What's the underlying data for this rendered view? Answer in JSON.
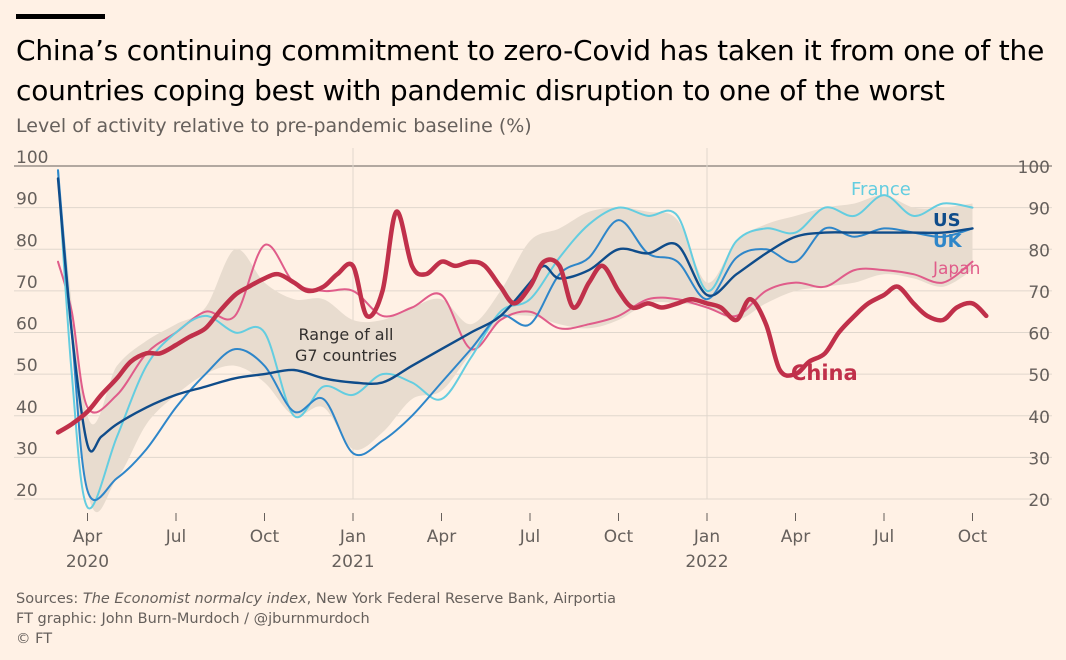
{
  "header": {
    "title": "China’s continuing commitment to zero-Covid has taken it from one of the countries coping best with pandemic disruption to one of the worst",
    "subtitle": "Level of activity relative to pre-pandemic baseline (%)"
  },
  "footer": {
    "sources_prefix": "Sources: ",
    "sources_italic": "The Economist normalcy index",
    "sources_rest": ", New York Federal Reserve Bank, Airportia",
    "credit": "FT graphic: John Burn-Murdoch / @jburnmurdoch",
    "copyright": "© FT"
  },
  "colors": {
    "background": "#fff1e5",
    "grid": "#e0d7cd",
    "range_band": "#e8dccf",
    "china": "#c0304a",
    "us": "#0f4c8a",
    "uk": "#2e86c9",
    "france": "#64cde0",
    "japan": "#e05c8a"
  },
  "chart_data": {
    "type": "line",
    "title": "China’s continuing commitment to zero-Covid has taken it from one of the countries coping best with pandemic disruption to one of the worst",
    "ylabel": "Level of activity relative to pre-pandemic baseline (%)",
    "ylim": [
      20,
      100
    ],
    "xlim": [
      "2020-03",
      "2022-11"
    ],
    "yticks": [
      100,
      90,
      80,
      70,
      60,
      50,
      40,
      30,
      20
    ],
    "xticks": [
      {
        "x": "2020-04",
        "label": "Apr",
        "year": "2020"
      },
      {
        "x": "2020-07",
        "label": "Jul",
        "year": ""
      },
      {
        "x": "2020-10",
        "label": "Oct",
        "year": ""
      },
      {
        "x": "2021-01",
        "label": "Jan",
        "year": "2021"
      },
      {
        "x": "2021-04",
        "label": "Apr",
        "year": ""
      },
      {
        "x": "2021-07",
        "label": "Jul",
        "year": ""
      },
      {
        "x": "2021-10",
        "label": "Oct",
        "year": ""
      },
      {
        "x": "2022-01",
        "label": "Jan",
        "year": "2022"
      },
      {
        "x": "2022-04",
        "label": "Apr",
        "year": ""
      },
      {
        "x": "2022-07",
        "label": "Jul",
        "year": ""
      },
      {
        "x": "2022-10",
        "label": "Oct",
        "year": ""
      }
    ],
    "range_label": "Range of all G7 countries",
    "range_band": {
      "x": [
        "2020-03-01",
        "2020-04-01",
        "2020-05-01",
        "2020-06-01",
        "2020-07-01",
        "2020-08-01",
        "2020-09-01",
        "2020-10-01",
        "2020-11-01",
        "2020-12-01",
        "2021-01-01",
        "2021-02-01",
        "2021-03-01",
        "2021-04-01",
        "2021-05-01",
        "2021-06-01",
        "2021-07-01",
        "2021-08-01",
        "2021-09-01",
        "2021-10-01",
        "2021-11-01",
        "2021-12-01",
        "2022-01-01",
        "2022-02-01",
        "2022-03-01",
        "2022-04-01",
        "2022-05-01",
        "2022-06-01",
        "2022-07-01",
        "2022-08-01",
        "2022-09-01",
        "2022-10-01"
      ],
      "low": [
        97,
        22,
        25,
        38,
        45,
        50,
        52,
        48,
        40,
        42,
        32,
        36,
        44,
        46,
        55,
        63,
        64,
        62,
        61,
        63,
        67,
        67,
        66,
        63,
        67,
        70,
        71,
        72,
        74,
        73,
        71,
        75
      ],
      "high": [
        99,
        40,
        52,
        58,
        62,
        66,
        80,
        72,
        68,
        68,
        63,
        63,
        66,
        68,
        62,
        70,
        82,
        85,
        89,
        90,
        89,
        87,
        72,
        82,
        86,
        88,
        90,
        91,
        93,
        90,
        90,
        91
      ]
    },
    "series": [
      {
        "name": "China",
        "color": "#c0304a",
        "x": [
          "2020-03-01",
          "2020-03-15",
          "2020-04-01",
          "2020-04-15",
          "2020-05-01",
          "2020-05-15",
          "2020-06-01",
          "2020-06-15",
          "2020-07-01",
          "2020-07-15",
          "2020-08-01",
          "2020-08-15",
          "2020-09-01",
          "2020-09-15",
          "2020-10-01",
          "2020-10-15",
          "2020-11-01",
          "2020-11-15",
          "2020-12-01",
          "2020-12-15",
          "2021-01-01",
          "2021-01-15",
          "2021-02-01",
          "2021-02-15",
          "2021-03-01",
          "2021-03-15",
          "2021-04-01",
          "2021-04-15",
          "2021-05-01",
          "2021-05-15",
          "2021-06-01",
          "2021-06-15",
          "2021-07-01",
          "2021-07-15",
          "2021-08-01",
          "2021-08-15",
          "2021-09-01",
          "2021-09-15",
          "2021-10-01",
          "2021-10-15",
          "2021-11-01",
          "2021-11-15",
          "2021-12-01",
          "2021-12-15",
          "2022-01-01",
          "2022-01-15",
          "2022-02-01",
          "2022-02-15",
          "2022-03-01",
          "2022-03-15",
          "2022-04-01",
          "2022-04-15",
          "2022-05-01",
          "2022-05-15",
          "2022-06-01",
          "2022-06-15",
          "2022-07-01",
          "2022-07-15",
          "2022-08-01",
          "2022-08-15",
          "2022-09-01",
          "2022-09-15",
          "2022-10-01",
          "2022-10-15"
        ],
        "y": [
          36,
          38,
          41,
          45,
          49,
          53,
          55,
          55,
          57,
          59,
          61,
          65,
          69,
          71,
          73,
          74,
          72,
          70,
          71,
          74,
          76,
          64,
          70,
          89,
          76,
          74,
          77,
          76,
          77,
          76,
          71,
          67,
          71,
          77,
          76,
          66,
          72,
          76,
          70,
          66,
          67,
          66,
          67,
          68,
          67,
          66,
          63,
          68,
          62,
          51,
          50,
          53,
          55,
          60,
          64,
          67,
          69,
          71,
          67,
          64,
          63,
          66,
          67,
          64
        ]
      },
      {
        "name": "US",
        "color": "#0f4c8a",
        "x": [
          "2020-03-01",
          "2020-03-15",
          "2020-04-01",
          "2020-04-15",
          "2020-05-01",
          "2020-06-01",
          "2020-07-01",
          "2020-08-01",
          "2020-09-01",
          "2020-10-01",
          "2020-11-01",
          "2020-12-01",
          "2021-01-01",
          "2021-02-01",
          "2021-03-01",
          "2021-04-01",
          "2021-05-01",
          "2021-06-01",
          "2021-07-01",
          "2021-07-15",
          "2021-08-01",
          "2021-09-01",
          "2021-10-01",
          "2021-11-01",
          "2021-12-01",
          "2022-01-01",
          "2022-02-01",
          "2022-03-01",
          "2022-04-01",
          "2022-05-01",
          "2022-06-01",
          "2022-07-01",
          "2022-08-01",
          "2022-09-01",
          "2022-10-01"
        ],
        "y": [
          97,
          60,
          33,
          35,
          38,
          42,
          45,
          47,
          49,
          50,
          51,
          49,
          48,
          48,
          52,
          56,
          60,
          64,
          72,
          76,
          73,
          75,
          80,
          79,
          81,
          69,
          74,
          79,
          83,
          84,
          84,
          84,
          84,
          84,
          85
        ]
      },
      {
        "name": "UK",
        "color": "#2e86c9",
        "x": [
          "2020-03-01",
          "2020-03-15",
          "2020-04-01",
          "2020-05-01",
          "2020-06-01",
          "2020-07-01",
          "2020-08-01",
          "2020-09-01",
          "2020-10-01",
          "2020-11-01",
          "2020-12-01",
          "2021-01-01",
          "2021-02-01",
          "2021-03-01",
          "2021-04-01",
          "2021-05-01",
          "2021-06-01",
          "2021-07-01",
          "2021-08-01",
          "2021-09-01",
          "2021-10-01",
          "2021-11-01",
          "2021-12-01",
          "2022-01-01",
          "2022-02-01",
          "2022-03-01",
          "2022-04-01",
          "2022-05-01",
          "2022-06-01",
          "2022-07-01",
          "2022-08-01",
          "2022-09-01",
          "2022-10-01"
        ],
        "y": [
          99,
          60,
          22,
          25,
          32,
          42,
          50,
          56,
          52,
          41,
          44,
          31,
          34,
          40,
          48,
          56,
          64,
          62,
          74,
          78,
          87,
          79,
          77,
          68,
          78,
          80,
          77,
          85,
          83,
          85,
          84,
          83,
          85
        ]
      },
      {
        "name": "France",
        "color": "#64cde0",
        "x": [
          "2020-03-01",
          "2020-03-15",
          "2020-04-01",
          "2020-05-01",
          "2020-06-01",
          "2020-07-01",
          "2020-08-01",
          "2020-09-01",
          "2020-10-01",
          "2020-11-01",
          "2020-12-01",
          "2021-01-01",
          "2021-02-01",
          "2021-03-01",
          "2021-04-01",
          "2021-05-01",
          "2021-06-01",
          "2021-07-01",
          "2021-08-01",
          "2021-09-01",
          "2021-10-01",
          "2021-11-01",
          "2021-12-01",
          "2022-01-01",
          "2022-02-01",
          "2022-03-01",
          "2022-04-01",
          "2022-05-01",
          "2022-06-01",
          "2022-07-01",
          "2022-08-01",
          "2022-09-01",
          "2022-10-01"
        ],
        "y": [
          99,
          50,
          18,
          35,
          52,
          60,
          64,
          60,
          60,
          40,
          47,
          45,
          50,
          48,
          44,
          54,
          65,
          68,
          78,
          86,
          90,
          88,
          88,
          70,
          82,
          85,
          84,
          90,
          88,
          93,
          88,
          91,
          90
        ]
      },
      {
        "name": "Japan",
        "color": "#e05c8a",
        "x": [
          "2020-03-01",
          "2020-03-15",
          "2020-04-01",
          "2020-05-01",
          "2020-06-01",
          "2020-07-01",
          "2020-08-01",
          "2020-09-01",
          "2020-10-01",
          "2020-11-01",
          "2020-12-01",
          "2021-01-01",
          "2021-02-01",
          "2021-03-01",
          "2021-04-01",
          "2021-05-01",
          "2021-06-01",
          "2021-07-01",
          "2021-08-01",
          "2021-09-01",
          "2021-10-01",
          "2021-11-01",
          "2021-12-01",
          "2022-01-01",
          "2022-02-01",
          "2022-03-01",
          "2022-04-01",
          "2022-05-01",
          "2022-06-01",
          "2022-07-01",
          "2022-08-01",
          "2022-09-01",
          "2022-10-01"
        ],
        "y": [
          77,
          65,
          42,
          45,
          55,
          60,
          65,
          64,
          81,
          72,
          70,
          70,
          64,
          66,
          69,
          56,
          63,
          65,
          61,
          62,
          64,
          68,
          68,
          66,
          64,
          70,
          72,
          71,
          75,
          75,
          74,
          72,
          77
        ]
      }
    ]
  }
}
